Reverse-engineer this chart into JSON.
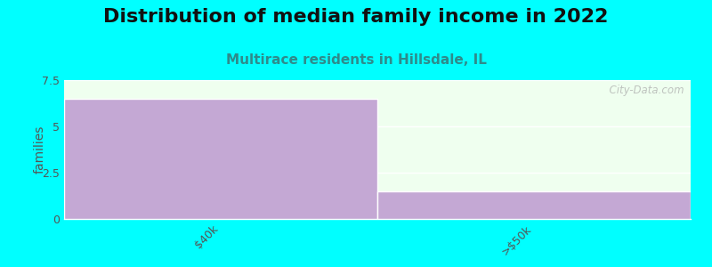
{
  "title": "Distribution of median family income in 2022",
  "subtitle": "Multirace residents in Hillsdale, IL",
  "categories": [
    "$40k",
    ">$50k"
  ],
  "values": [
    6.5,
    1.5
  ],
  "bar_color": "#c4a8d4",
  "background_color": "#00ffff",
  "plot_bg_color": "#efffef",
  "ylabel": "families",
  "ylim": [
    0,
    7.5
  ],
  "yticks": [
    0,
    2.5,
    5,
    7.5
  ],
  "title_fontsize": 16,
  "subtitle_fontsize": 11,
  "subtitle_color": "#2e8b8b",
  "title_color": "#111111",
  "watermark": "  City-Data.com",
  "tick_color": "#555555"
}
